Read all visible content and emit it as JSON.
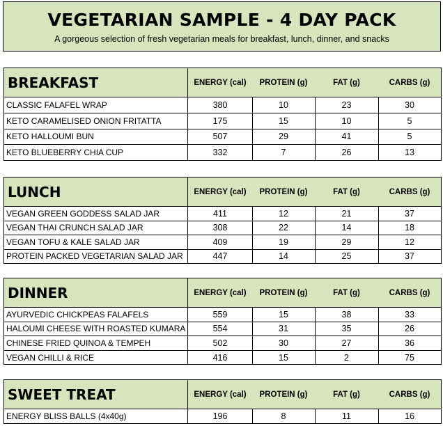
{
  "header": {
    "title": "VEGETARIAN SAMPLE - 4 DAY PACK",
    "subtitle": "A gorgeous selection of fresh vegetarian meals for breakfast, lunch, dinner, and snacks"
  },
  "sections": [
    {
      "name": "BREAKFAST",
      "columns": [
        "ENERGY (cal)",
        "PROTEIN  (g)",
        "FAT (g)",
        "CARBS (g)"
      ],
      "rows": [
        [
          "CLASSIC FALAFEL WRAP",
          380,
          10,
          23,
          30
        ],
        [
          "KETO CARAMELISED ONION FRITATTA",
          175,
          15,
          10,
          5
        ],
        [
          "KETO HALLOUMI BUN",
          507,
          29,
          41,
          5
        ],
        [
          "KETO BLUEBERRY CHIA CUP",
          332,
          7,
          26,
          13
        ]
      ]
    },
    {
      "name": "LUNCH",
      "columns": [
        "ENERGY (cal)",
        "PROTEIN  (g)",
        "FAT (g)",
        "CARBS (g)"
      ],
      "rows": [
        [
          "VEGAN GREEN GODDESS SALAD JAR",
          411,
          12,
          21,
          37
        ],
        [
          "VEGAN THAI CRUNCH SALAD JAR",
          308,
          22,
          14,
          18
        ],
        [
          "VEGAN TOFU & KALE SALAD JAR",
          409,
          19,
          29,
          12
        ],
        [
          "PROTEIN PACKED VEGETARIAN SALAD JAR",
          447,
          14,
          25,
          37
        ]
      ]
    },
    {
      "name": "DINNER",
      "columns": [
        "ENERGY (cal)",
        "PROTEIN  (g)",
        "FAT (g)",
        "CARBS (g)"
      ],
      "rows": [
        [
          "AYURVEDIC CHICKPEAS FALAFELS",
          559,
          15,
          38,
          33
        ],
        [
          "HALOUMI CHEESE WITH ROASTED KUMARA",
          554,
          31,
          35,
          26
        ],
        [
          "CHINESE FRIED QUINOA & TEMPEH",
          502,
          30,
          27,
          36
        ],
        [
          "VEGAN CHILLI & RICE",
          416,
          15,
          2,
          75
        ]
      ]
    },
    {
      "name": "SWEET TREAT",
      "columns": [
        "ENERGY (cal)",
        "PROTEIN  (g)",
        "FAT (g)",
        "CARBS (g)"
      ],
      "rows": [
        [
          "ENERGY BLISS BALLS (4x40g)",
          196,
          8,
          11,
          16
        ]
      ]
    }
  ]
}
